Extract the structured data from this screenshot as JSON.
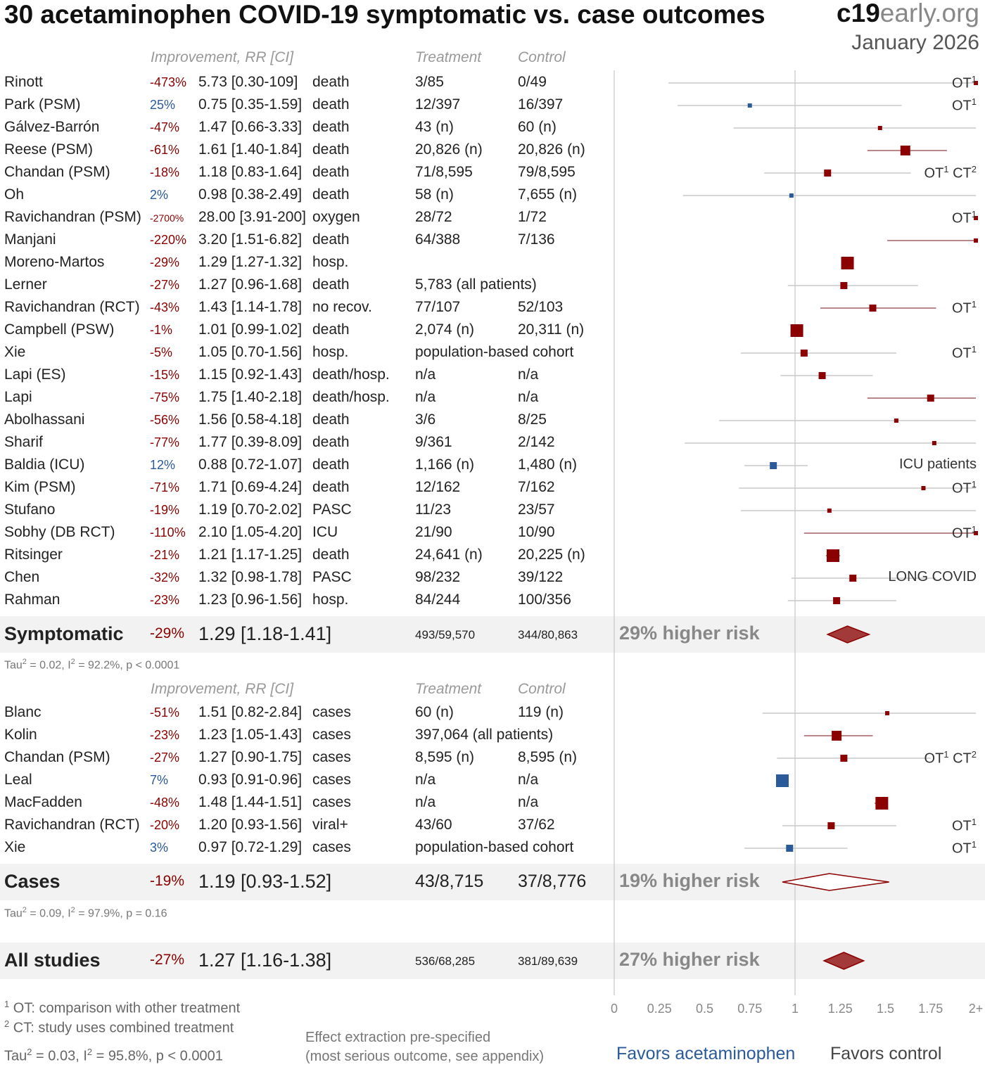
{
  "title": "30 acetaminophen COVID-19 symptomatic vs. case outcomes",
  "brand": {
    "bold": "c19",
    "light": "early.org"
  },
  "date": "January 2026",
  "headers": {
    "improvement": "Improvement, RR [CI]",
    "treatment": "Treatment",
    "control": "Control"
  },
  "chart_data": {
    "type": "forest",
    "x_axis": {
      "ticks": [
        "0",
        "0.25",
        "0.5",
        "0.75",
        "1",
        "1.25",
        "1.5",
        "1.75",
        "2+"
      ],
      "range": [
        0,
        2
      ]
    },
    "symptomatic": [
      {
        "name": "Rinott",
        "imp": "-473%",
        "rr": 5.73,
        "lo": 0.3,
        "hi": 109,
        "rr_text": "5.73 [0.30-109]",
        "outcome": "death",
        "treatment": "3/85",
        "control": "0/49",
        "note": "OT1",
        "w": 1
      },
      {
        "name": "Park (PSM)",
        "imp": "25%",
        "rr": 0.75,
        "lo": 0.35,
        "hi": 1.59,
        "rr_text": "0.75 [0.35-1.59]",
        "outcome": "death",
        "treatment": "12/397",
        "control": "16/397",
        "note": "OT1",
        "w": 1
      },
      {
        "name": "Gálvez-Barrón",
        "imp": "-47%",
        "rr": 1.47,
        "lo": 0.66,
        "hi": 3.33,
        "rr_text": "1.47 [0.66-3.33]",
        "outcome": "death",
        "treatment": "43 (n)",
        "control": "60 (n)",
        "note": "",
        "w": 1
      },
      {
        "name": "Reese (PSM)",
        "imp": "-61%",
        "rr": 1.61,
        "lo": 1.4,
        "hi": 1.84,
        "rr_text": "1.61 [1.40-1.84]",
        "outcome": "death",
        "treatment": "20,826 (n)",
        "control": "20,826 (n)",
        "note": "",
        "w": 3
      },
      {
        "name": "Chandan (PSM)",
        "imp": "-18%",
        "rr": 1.18,
        "lo": 0.83,
        "hi": 1.64,
        "rr_text": "1.18 [0.83-1.64]",
        "outcome": "death",
        "treatment": "71/8,595",
        "control": "79/8,595",
        "note": "OT1 CT2",
        "w": 2
      },
      {
        "name": "Oh",
        "imp": "2%",
        "rr": 0.98,
        "lo": 0.38,
        "hi": 2.49,
        "rr_text": "0.98 [0.38-2.49]",
        "outcome": "death",
        "treatment": "58 (n)",
        "control": "7,655 (n)",
        "note": "",
        "w": 1
      },
      {
        "name": "Ravichandran (PSM)",
        "imp": "-2700%",
        "rr": 28.0,
        "lo": 3.91,
        "hi": 200,
        "rr_text": "28.00 [3.91-200]",
        "outcome": "oxygen",
        "treatment": "28/72",
        "control": "1/72",
        "note": "OT1",
        "w": 1
      },
      {
        "name": "Manjani",
        "imp": "-220%",
        "rr": 3.2,
        "lo": 1.51,
        "hi": 6.82,
        "rr_text": "3.20 [1.51-6.82]",
        "outcome": "death",
        "treatment": "64/388",
        "control": "7/136",
        "note": "",
        "w": 1
      },
      {
        "name": "Moreno-Martos",
        "imp": "-29%",
        "rr": 1.29,
        "lo": 1.27,
        "hi": 1.32,
        "rr_text": "1.29 [1.27-1.32]",
        "outcome": "hosp.",
        "treatment": "",
        "control": "",
        "note": "",
        "w": 4
      },
      {
        "name": "Lerner",
        "imp": "-27%",
        "rr": 1.27,
        "lo": 0.96,
        "hi": 1.68,
        "rr_text": "1.27 [0.96-1.68]",
        "outcome": "death",
        "treatment": "5,783 (all patients)",
        "control": "",
        "note": "",
        "w": 2
      },
      {
        "name": "Ravichandran (RCT)",
        "imp": "-43%",
        "rr": 1.43,
        "lo": 1.14,
        "hi": 1.78,
        "rr_text": "1.43 [1.14-1.78]",
        "outcome": "no recov.",
        "treatment": "77/107",
        "control": "52/103",
        "note": "OT1",
        "w": 2
      },
      {
        "name": "Campbell (PSW)",
        "imp": "-1%",
        "rr": 1.01,
        "lo": 0.99,
        "hi": 1.02,
        "rr_text": "1.01 [0.99-1.02]",
        "outcome": "death",
        "treatment": "2,074 (n)",
        "control": "20,311 (n)",
        "note": "",
        "w": 4
      },
      {
        "name": "Xie",
        "imp": "-5%",
        "rr": 1.05,
        "lo": 0.7,
        "hi": 1.56,
        "rr_text": "1.05 [0.70-1.56]",
        "outcome": "hosp.",
        "treatment": "population-based cohort",
        "control": "",
        "note": "OT1",
        "w": 2
      },
      {
        "name": "Lapi (ES)",
        "imp": "-15%",
        "rr": 1.15,
        "lo": 0.92,
        "hi": 1.43,
        "rr_text": "1.15 [0.92-1.43]",
        "outcome": "death/hosp.",
        "treatment": "n/a",
        "control": "n/a",
        "note": "",
        "w": 2
      },
      {
        "name": "Lapi",
        "imp": "-75%",
        "rr": 1.75,
        "lo": 1.4,
        "hi": 2.18,
        "rr_text": "1.75 [1.40-2.18]",
        "outcome": "death/hosp.",
        "treatment": "n/a",
        "control": "n/a",
        "note": "",
        "w": 2
      },
      {
        "name": "Abolhassani",
        "imp": "-56%",
        "rr": 1.56,
        "lo": 0.58,
        "hi": 4.18,
        "rr_text": "1.56 [0.58-4.18]",
        "outcome": "death",
        "treatment": "3/6",
        "control": "8/25",
        "note": "",
        "w": 1
      },
      {
        "name": "Sharif",
        "imp": "-77%",
        "rr": 1.77,
        "lo": 0.39,
        "hi": 8.09,
        "rr_text": "1.77 [0.39-8.09]",
        "outcome": "death",
        "treatment": "9/361",
        "control": "2/142",
        "note": "",
        "w": 1
      },
      {
        "name": "Baldia (ICU)",
        "imp": "12%",
        "rr": 0.88,
        "lo": 0.72,
        "hi": 1.07,
        "rr_text": "0.88 [0.72-1.07]",
        "outcome": "death",
        "treatment": "1,166 (n)",
        "control": "1,480 (n)",
        "note": "ICU patients",
        "w": 2
      },
      {
        "name": "Kim (PSM)",
        "imp": "-71%",
        "rr": 1.71,
        "lo": 0.69,
        "hi": 4.24,
        "rr_text": "1.71 [0.69-4.24]",
        "outcome": "death",
        "treatment": "12/162",
        "control": "7/162",
        "note": "OT1",
        "w": 1
      },
      {
        "name": "Stufano",
        "imp": "-19%",
        "rr": 1.19,
        "lo": 0.7,
        "hi": 2.02,
        "rr_text": "1.19 [0.70-2.02]",
        "outcome": "PASC",
        "treatment": "11/23",
        "control": "23/57",
        "note": "",
        "w": 1
      },
      {
        "name": "Sobhy (DB RCT)",
        "imp": "-110%",
        "rr": 2.1,
        "lo": 1.05,
        "hi": 4.2,
        "rr_text": "2.10 [1.05-4.20]",
        "outcome": "ICU",
        "treatment": "21/90",
        "control": "10/90",
        "note": "OT1",
        "w": 1
      },
      {
        "name": "Ritsinger",
        "imp": "-21%",
        "rr": 1.21,
        "lo": 1.17,
        "hi": 1.25,
        "rr_text": "1.21 [1.17-1.25]",
        "outcome": "death",
        "treatment": "24,641 (n)",
        "control": "20,225 (n)",
        "note": "",
        "w": 4
      },
      {
        "name": "Chen",
        "imp": "-32%",
        "rr": 1.32,
        "lo": 0.98,
        "hi": 1.78,
        "rr_text": "1.32 [0.98-1.78]",
        "outcome": "PASC",
        "treatment": "98/232",
        "control": "39/122",
        "note": "LONG COVID",
        "w": 2
      },
      {
        "name": "Rahman",
        "imp": "-23%",
        "rr": 1.23,
        "lo": 0.96,
        "hi": 1.56,
        "rr_text": "1.23 [0.96-1.56]",
        "outcome": "hosp.",
        "treatment": "84/244",
        "control": "100/356",
        "note": "",
        "w": 2
      }
    ],
    "symptomatic_summary": {
      "name": "Symptomatic",
      "imp": "-29%",
      "rr": 1.29,
      "lo": 1.18,
      "hi": 1.41,
      "rr_text": "1.29 [1.18-1.41]",
      "treatment": "493/59,570",
      "control": "344/80,863",
      "risk": "29% higher risk",
      "significant": true
    },
    "symptomatic_stats": "Tau² = 0.02, I² = 92.2%, p < 0.0001",
    "cases": [
      {
        "name": "Blanc",
        "imp": "-51%",
        "rr": 1.51,
        "lo": 0.82,
        "hi": 2.84,
        "rr_text": "1.51 [0.82-2.84]",
        "outcome": "cases",
        "treatment": "60 (n)",
        "control": "119 (n)",
        "note": "",
        "w": 1
      },
      {
        "name": "Kolin",
        "imp": "-23%",
        "rr": 1.23,
        "lo": 1.05,
        "hi": 1.43,
        "rr_text": "1.23 [1.05-1.43]",
        "outcome": "cases",
        "treatment": "397,064 (all patients)",
        "control": "",
        "note": "",
        "w": 3
      },
      {
        "name": "Chandan (PSM)",
        "imp": "-27%",
        "rr": 1.27,
        "lo": 0.9,
        "hi": 1.75,
        "rr_text": "1.27 [0.90-1.75]",
        "outcome": "cases",
        "treatment": "8,595 (n)",
        "control": "8,595 (n)",
        "note": "OT1 CT2",
        "w": 2
      },
      {
        "name": "Leal",
        "imp": "7%",
        "rr": 0.93,
        "lo": 0.91,
        "hi": 0.96,
        "rr_text": "0.93 [0.91-0.96]",
        "outcome": "cases",
        "treatment": "n/a",
        "control": "n/a",
        "note": "",
        "w": 4
      },
      {
        "name": "MacFadden",
        "imp": "-48%",
        "rr": 1.48,
        "lo": 1.44,
        "hi": 1.51,
        "rr_text": "1.48 [1.44-1.51]",
        "outcome": "cases",
        "treatment": "n/a",
        "control": "n/a",
        "note": "",
        "w": 4
      },
      {
        "name": "Ravichandran (RCT)",
        "imp": "-20%",
        "rr": 1.2,
        "lo": 0.93,
        "hi": 1.56,
        "rr_text": "1.20 [0.93-1.56]",
        "outcome": "viral+",
        "treatment": "43/60",
        "control": "37/62",
        "note": "OT1",
        "w": 2
      },
      {
        "name": "Xie",
        "imp": "3%",
        "rr": 0.97,
        "lo": 0.72,
        "hi": 1.29,
        "rr_text": "0.97 [0.72-1.29]",
        "outcome": "cases",
        "treatment": "population-based cohort",
        "control": "",
        "note": "OT1",
        "w": 2
      }
    ],
    "cases_summary": {
      "name": "Cases",
      "imp": "-19%",
      "rr": 1.19,
      "lo": 0.93,
      "hi": 1.52,
      "rr_text": "1.19 [0.93-1.52]",
      "treatment": "43/8,715",
      "control": "37/8,776",
      "risk": "19% higher risk",
      "significant": false
    },
    "cases_stats": "Tau² = 0.09, I² = 97.9%, p = 0.16",
    "all_summary": {
      "name": "All studies",
      "imp": "-27%",
      "rr": 1.27,
      "lo": 1.16,
      "hi": 1.38,
      "rr_text": "1.27 [1.16-1.38]",
      "treatment": "536/68,285",
      "control": "381/89,639",
      "risk": "27% higher risk",
      "significant": true
    },
    "all_stats": "Tau² = 0.03, I² = 95.8%, p < 0.0001",
    "colors": {
      "harm": "#8b0000",
      "benefit": "#2a5a9a",
      "summary_fill": "#a33a3a"
    }
  },
  "footnotes": {
    "ot": "OT: comparison with other treatment",
    "ct": "CT: study uses combined treatment"
  },
  "effect_note": {
    "line1": "Effect extraction pre-specified",
    "line2": "(most serious outcome, see appendix)"
  },
  "favors": {
    "left": "Favors acetaminophen",
    "right": "Favors control"
  }
}
